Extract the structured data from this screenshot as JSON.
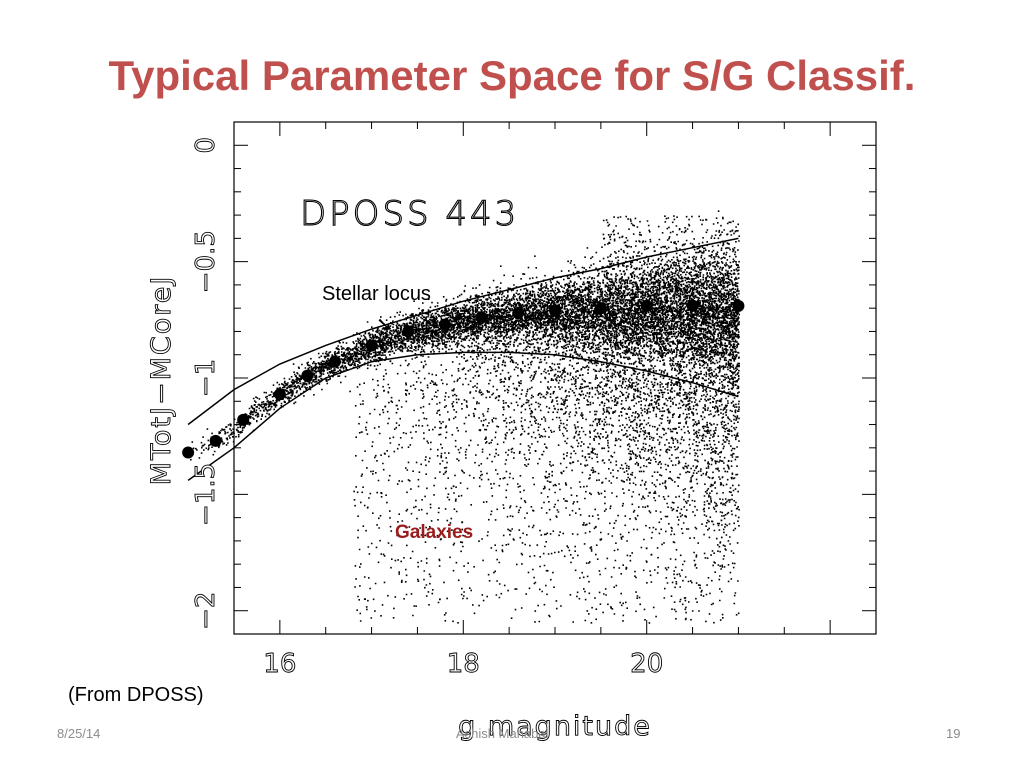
{
  "slide": {
    "title": "Typical Parameter Space for S/G Classif.",
    "source_note": "(From DPOSS)",
    "footer": {
      "date": "8/25/14",
      "author": "Ashish Mahabal",
      "page": "19"
    }
  },
  "chart_data": {
    "type": "scatter",
    "title": "DPOSS 443",
    "xlabel": "g magnitude",
    "ylabel": "MTotJ−MCoreJ",
    "xlim": [
      15.5,
      22.5
    ],
    "ylim": [
      -2.1,
      0.1
    ],
    "x_ticks": [
      16,
      18,
      20
    ],
    "y_ticks": [
      0,
      -0.5,
      -1,
      -1.5,
      -2
    ],
    "y_tick_labels": [
      "0",
      "−0.5",
      "−1",
      "−1.5",
      "−2"
    ],
    "annotations": {
      "stellar": "Stellar locus",
      "stellar_arrow": "➘",
      "galaxies": "Galaxies"
    },
    "colors": {
      "points": "#000000",
      "galaxies_label": "#9b1c1c",
      "title": "#c0504d"
    },
    "series": [
      {
        "role": "stellar-locus-means",
        "x": [
          15.0,
          15.3,
          15.6,
          16.0,
          16.3,
          16.6,
          17.0,
          17.4,
          17.8,
          18.2,
          18.6,
          19.0,
          19.5,
          20.0,
          20.5,
          21.0
        ],
        "y": [
          -1.32,
          -1.27,
          -1.18,
          -1.07,
          -0.99,
          -0.93,
          -0.86,
          -0.8,
          -0.77,
          -0.74,
          -0.72,
          -0.71,
          -0.7,
          -0.69,
          -0.69,
          -0.69
        ]
      },
      {
        "role": "upper-envelope",
        "x": [
          15.0,
          15.5,
          16.0,
          16.5,
          17.0,
          17.5,
          18.0,
          18.5,
          19.0,
          19.5,
          20.0,
          20.5,
          21.0
        ],
        "y": [
          -1.2,
          -1.05,
          -0.94,
          -0.86,
          -0.79,
          -0.73,
          -0.67,
          -0.62,
          -0.57,
          -0.53,
          -0.48,
          -0.44,
          -0.4
        ]
      },
      {
        "role": "lower-envelope",
        "x": [
          15.0,
          15.5,
          16.0,
          16.5,
          17.0,
          17.5,
          18.0,
          18.5,
          19.0,
          19.5,
          20.0,
          20.5,
          21.0
        ],
        "y": [
          -1.44,
          -1.3,
          -1.13,
          -1.0,
          -0.93,
          -0.9,
          -0.89,
          -0.89,
          -0.9,
          -0.93,
          -0.97,
          -1.02,
          -1.08
        ]
      }
    ]
  }
}
